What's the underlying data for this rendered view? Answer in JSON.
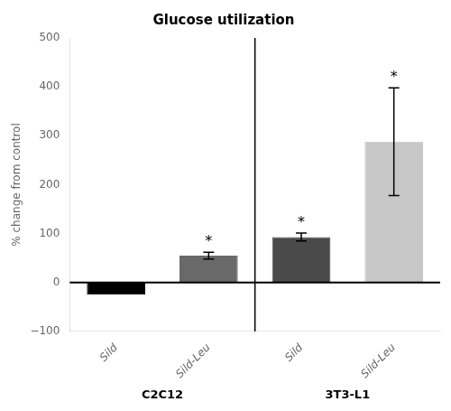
{
  "chart_data": {
    "type": "bar",
    "title": "Glucose utilization",
    "ylabel": "% change from control",
    "categories": [
      "Sild",
      "Sild-Leu",
      "Sild",
      "Sild-Leu"
    ],
    "values": [
      -25,
      55,
      93,
      288
    ],
    "errors": [
      0,
      7,
      8,
      110
    ],
    "annotations": [
      null,
      "*",
      "*",
      "*"
    ],
    "groups": [
      {
        "label": "C2C12",
        "count": 2
      },
      {
        "label": "3T3-L1",
        "count": 2
      }
    ],
    "colors": [
      "#000000",
      "#696969",
      "#4a4a4a",
      "#c8c8c8"
    ],
    "ylim": [
      -100,
      500
    ],
    "yticks": [
      {
        "value": -100,
        "label": "−100"
      },
      0,
      100,
      200,
      300,
      400,
      500
    ],
    "grid": false
  }
}
